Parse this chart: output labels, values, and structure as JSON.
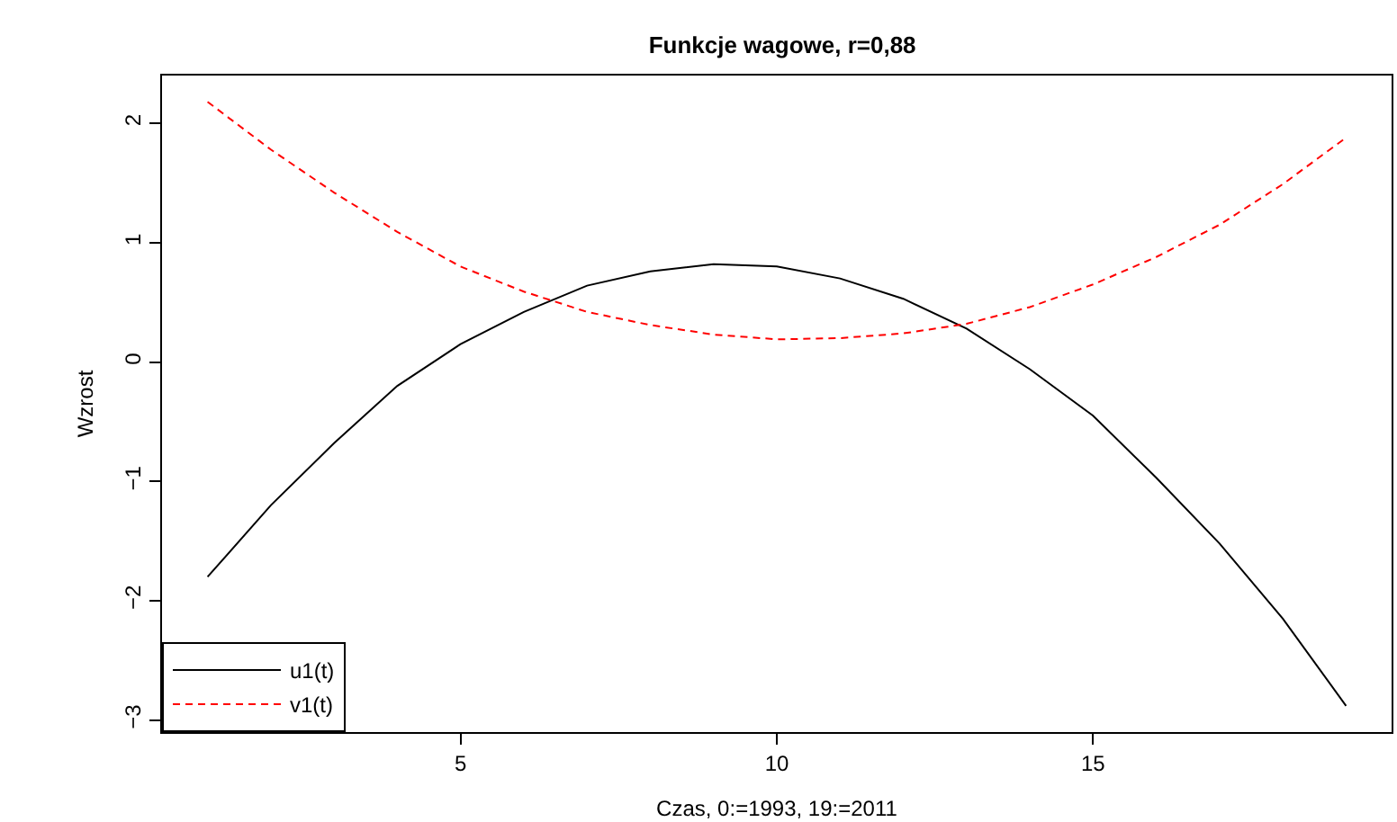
{
  "chart_data": {
    "type": "line",
    "title": "Funkcje wagowe, r=0,88",
    "xlabel": "Czas, 0:=1993, 19:=2011",
    "ylabel": "Wzrost",
    "x": [
      1,
      2,
      3,
      4,
      5,
      6,
      7,
      8,
      9,
      10,
      11,
      12,
      13,
      14,
      15,
      16,
      17,
      18,
      19
    ],
    "series": [
      {
        "name": "u1(t)",
        "color": "#000000",
        "line_style": "solid",
        "values": [
          -1.8,
          -1.2,
          -0.68,
          -0.2,
          0.15,
          0.42,
          0.64,
          0.76,
          0.82,
          0.8,
          0.7,
          0.53,
          0.28,
          -0.06,
          -0.45,
          -0.97,
          -1.52,
          -2.15,
          -2.88
        ]
      },
      {
        "name": "v1(t)",
        "color": "#ff0000",
        "line_style": "dashed",
        "values": [
          2.18,
          1.78,
          1.42,
          1.09,
          0.8,
          0.59,
          0.42,
          0.31,
          0.23,
          0.19,
          0.2,
          0.24,
          0.32,
          0.46,
          0.65,
          0.88,
          1.15,
          1.49,
          1.88
        ]
      }
    ],
    "xlim": [
      0.28,
      19.72
    ],
    "ylim": [
      -3.1,
      2.4
    ],
    "xticks": [
      5,
      10,
      15
    ],
    "yticks": [
      -3,
      -2,
      -1,
      0,
      1,
      2
    ],
    "legend": "bottom left",
    "marker": "none"
  }
}
